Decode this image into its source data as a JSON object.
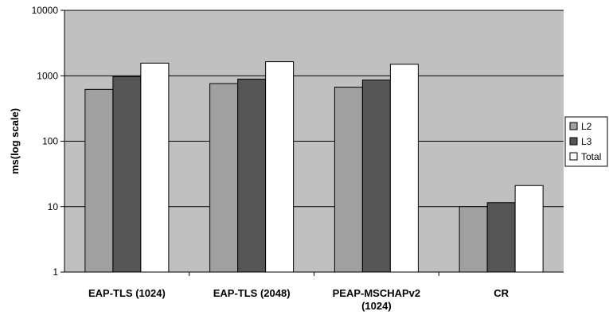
{
  "chart_data": {
    "type": "bar",
    "title": "",
    "xlabel": "",
    "ylabel": "ms(log scale)",
    "y_scale": "log",
    "ylim": [
      1,
      10000
    ],
    "y_ticks": [
      "1",
      "10",
      "100",
      "1000",
      "10000"
    ],
    "grid": true,
    "legend_position": "right",
    "categories": [
      [
        "EAP-TLS (1024)"
      ],
      [
        "EAP-TLS (2048)"
      ],
      [
        "PEAP-MSCHAPv2",
        "(1024)"
      ],
      [
        "CR"
      ]
    ],
    "series": [
      {
        "name": "L2",
        "color": "#a0a0a0",
        "values": [
          620,
          760,
          670,
          10
        ]
      },
      {
        "name": "L3",
        "color": "#555555",
        "values": [
          970,
          890,
          860,
          11.5
        ]
      },
      {
        "name": "Total",
        "color": "#ffffff",
        "values": [
          1560,
          1640,
          1500,
          21
        ]
      }
    ],
    "plot_background": "#c0c0c0"
  }
}
